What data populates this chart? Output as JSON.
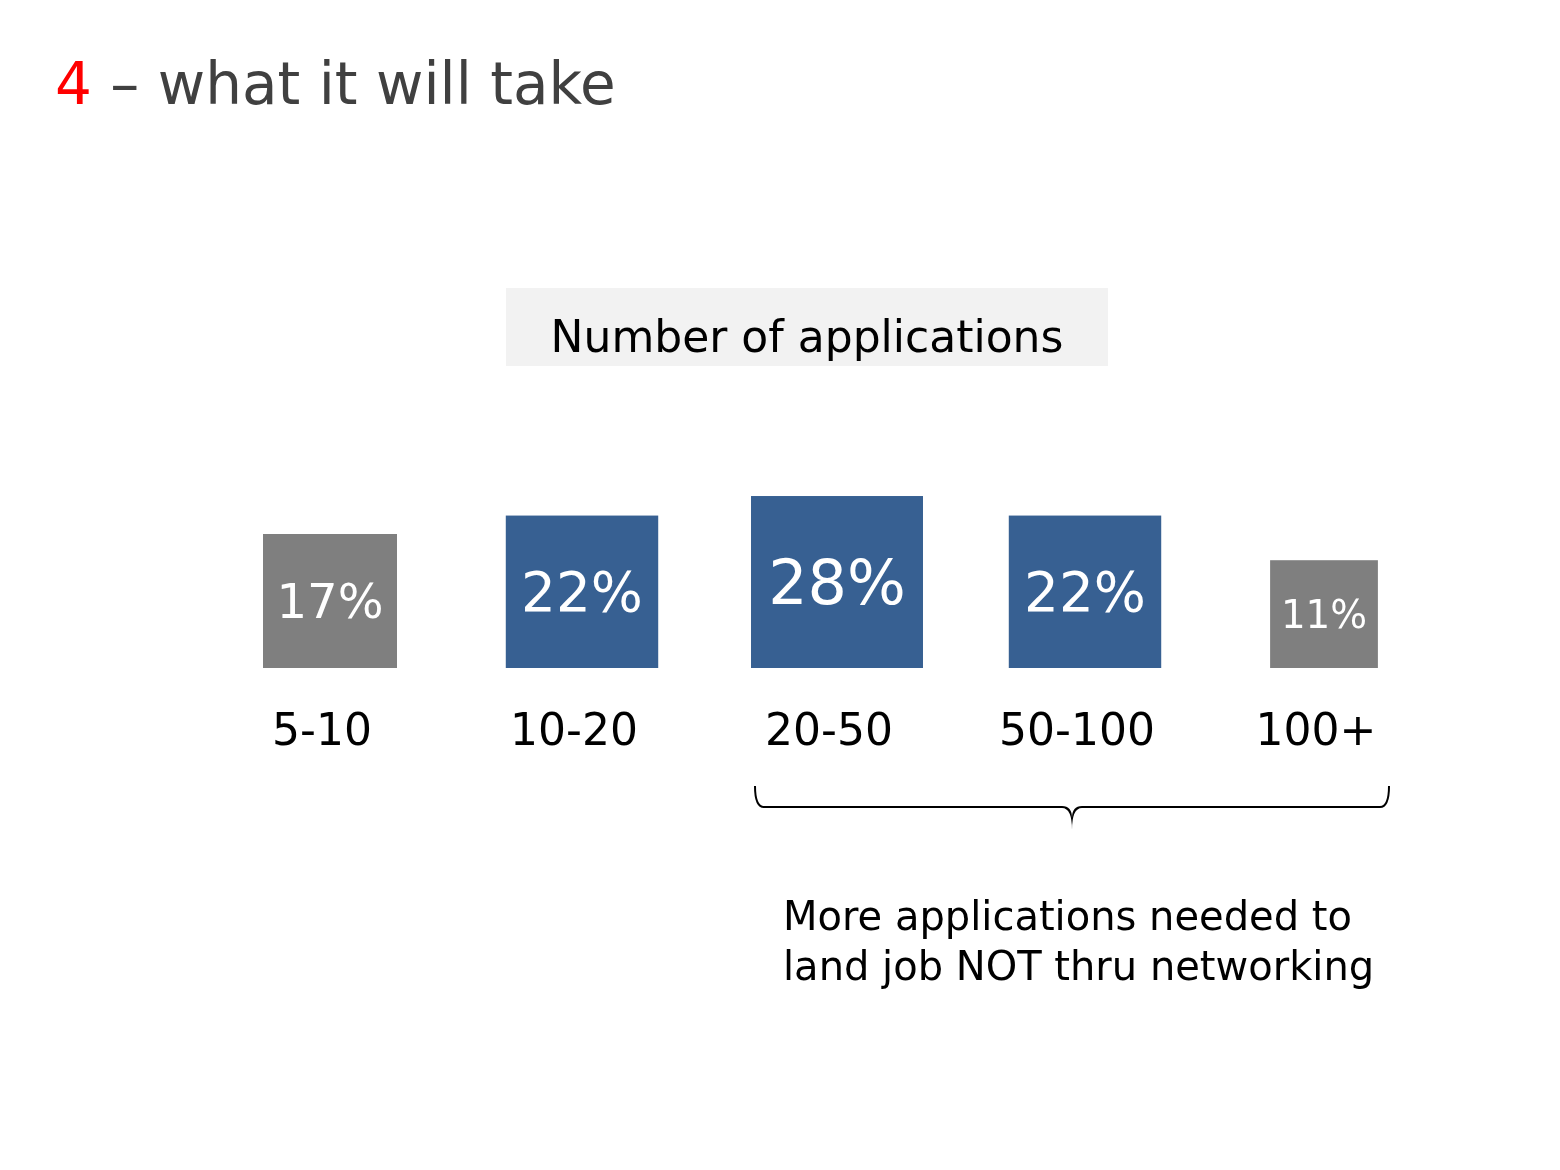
{
  "chart_data": {
    "type": "other",
    "title": "4 – what it will take",
    "subtitle": "Number of applications",
    "categories": [
      "5-10",
      "10-20",
      "20-50",
      "50-100",
      "100+"
    ],
    "values": [
      17,
      22,
      28,
      22,
      11
    ],
    "colors": [
      "#7f7f7f",
      "#376092",
      "#376092",
      "#376092",
      "#7f7f7f"
    ],
    "value_labels": [
      "17%",
      "22%",
      "28%",
      "22%",
      "11%"
    ],
    "annotations": [
      "More applications needed to land job NOT thru networking"
    ]
  }
}
